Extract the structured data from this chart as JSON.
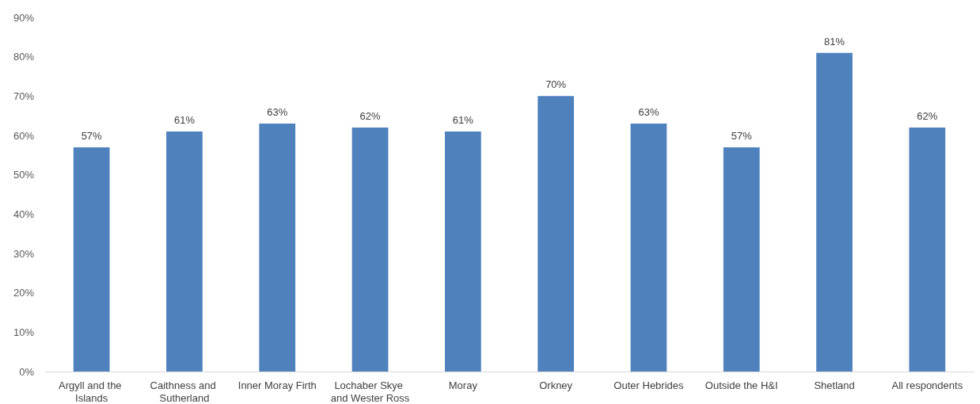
{
  "chart_data": {
    "type": "bar",
    "categories": [
      "Argyll and the Islands",
      "Caithness and Sutherland",
      "Inner Moray Firth",
      "Lochaber Skye and Wester Ross",
      "Moray",
      "Orkney",
      "Outer Hebrides",
      "Outside the H&I",
      "Shetland",
      "All respondents"
    ],
    "values": [
      57,
      61,
      63,
      62,
      61,
      70,
      63,
      57,
      81,
      62
    ],
    "value_labels": [
      "57%",
      "61%",
      "63%",
      "62%",
      "61%",
      "70%",
      "63%",
      "57%",
      "81%",
      "62%"
    ],
    "color": "#4f81bd",
    "ylim": [
      0,
      90
    ],
    "yticks": [
      {
        "value": 0,
        "label": "0%"
      },
      {
        "value": 10,
        "label": "10%"
      },
      {
        "value": 20,
        "label": "20%"
      },
      {
        "value": 30,
        "label": "30%"
      },
      {
        "value": 40,
        "label": "40%"
      },
      {
        "value": 50,
        "label": "50%"
      },
      {
        "value": 60,
        "label": "60%"
      },
      {
        "value": 70,
        "label": "70%"
      },
      {
        "value": 80,
        "label": "80%"
      },
      {
        "value": 90,
        "label": "90%"
      }
    ],
    "grid": false
  }
}
